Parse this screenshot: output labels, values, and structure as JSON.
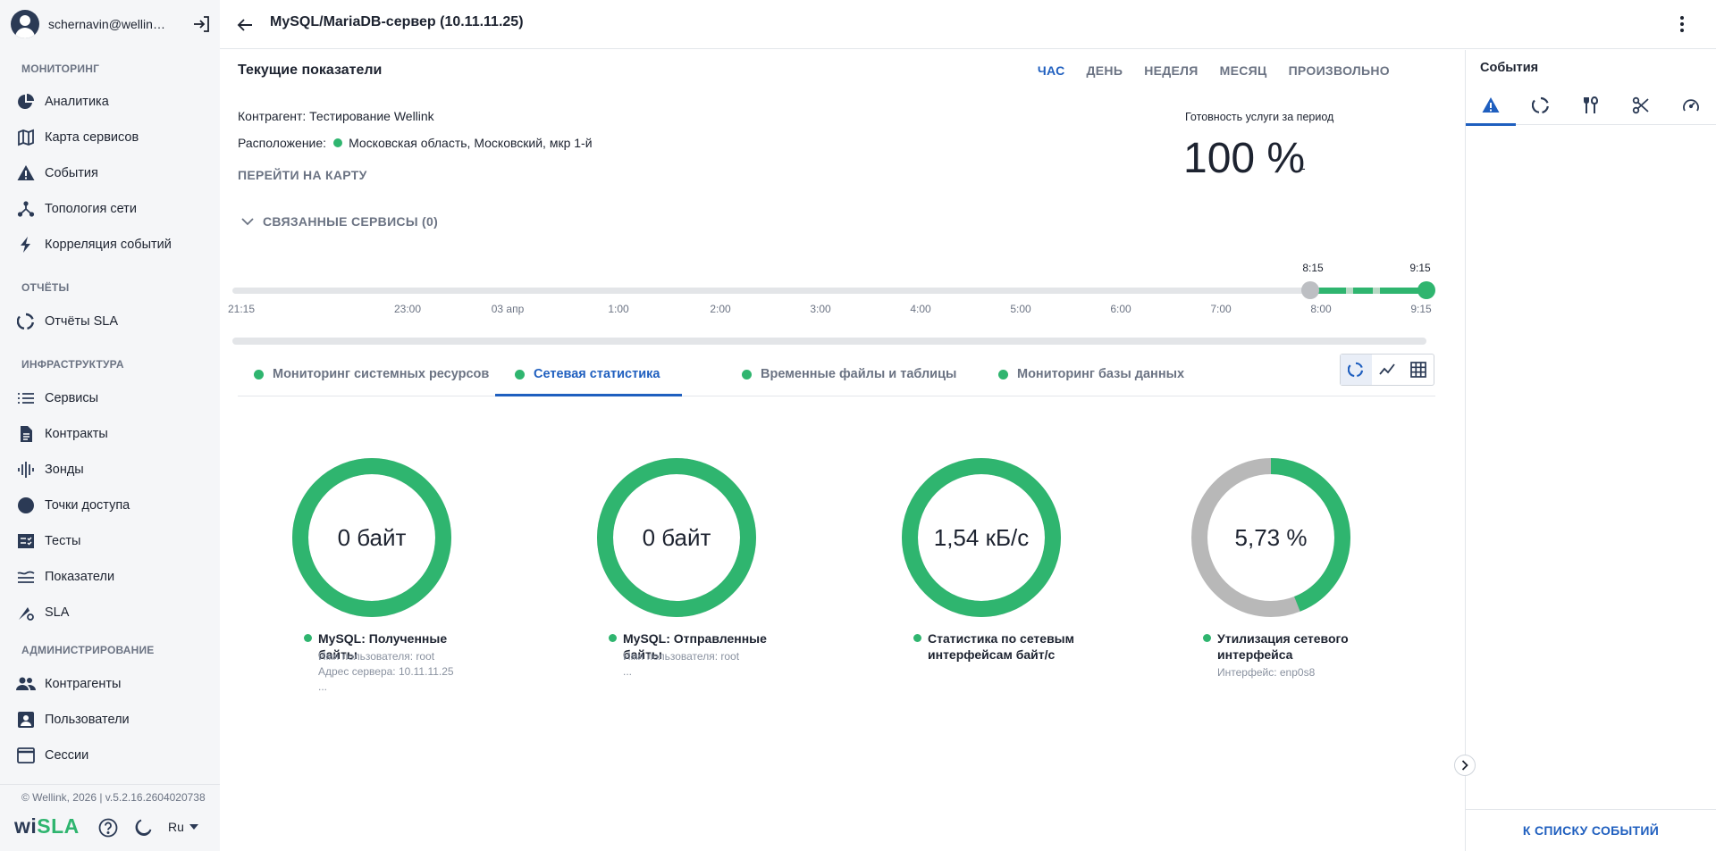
{
  "user": {
    "name": "schernavin@wellink.ru"
  },
  "sidebar": {
    "sections": [
      {
        "title": "МОНИТОРИНГ",
        "items": [
          {
            "label": "Аналитика",
            "icon": "pie-chart-icon"
          },
          {
            "label": "Карта сервисов",
            "icon": "map-icon"
          },
          {
            "label": "События",
            "icon": "warning-icon"
          },
          {
            "label": "Топология сети",
            "icon": "topology-icon"
          },
          {
            "label": "Корреляция событий",
            "icon": "bolt-icon"
          }
        ]
      },
      {
        "title": "ОТЧЁТЫ",
        "items": [
          {
            "label": "Отчёты SLA",
            "icon": "ring-icon"
          }
        ]
      },
      {
        "title": "ИНФРАСТРУКТУРА",
        "items": [
          {
            "label": "Сервисы",
            "icon": "list-icon"
          },
          {
            "label": "Контракты",
            "icon": "document-icon"
          },
          {
            "label": "Зонды",
            "icon": "wave-icon"
          },
          {
            "label": "Точки доступа",
            "icon": "circle-icon"
          },
          {
            "label": "Тесты",
            "icon": "checklist-icon"
          },
          {
            "label": "Показатели",
            "icon": "lines-icon"
          },
          {
            "label": "SLA",
            "icon": "sla-icon"
          }
        ]
      },
      {
        "title": "АДМИНИСТРИРОВАНИЕ",
        "items": [
          {
            "label": "Контрагенты",
            "icon": "people-icon"
          },
          {
            "label": "Пользователи",
            "icon": "user-card-icon"
          },
          {
            "label": "Сессии",
            "icon": "window-icon"
          }
        ]
      }
    ],
    "copyright": "© Wellink, 2026 | v.5.2.16.2604020738",
    "brand_prefix": "wi",
    "brand_suffix": "SLA",
    "language": "Ru"
  },
  "header": {
    "title": "MySQL/MariaDB-сервер (10.11.11.25)"
  },
  "main": {
    "section_title": "Текущие показатели",
    "periods": [
      {
        "label": "ЧАС",
        "active": true
      },
      {
        "label": "ДЕНЬ",
        "active": false
      },
      {
        "label": "НЕДЕЛЯ",
        "active": false
      },
      {
        "label": "МЕСЯЦ",
        "active": false
      },
      {
        "label": "ПРОИЗВОЛЬНО",
        "active": false
      }
    ],
    "counterparty": "Контрагент: Тестирование Wellink",
    "location_label": "Расположение:",
    "location_value": "Московская область, Московский, мкр 1-й",
    "map_link": "ПЕРЕЙТИ НА КАРТУ",
    "availability_label": "Готовность услуги за период",
    "availability_value": "100 %",
    "availability_dash": "-",
    "related_services": "СВЯЗАННЫЕ СЕРВИСЫ (0)"
  },
  "timeline": {
    "ticks": [
      "21:15",
      "23:00",
      "03 апр",
      "1:00",
      "2:00",
      "3:00",
      "4:00",
      "5:00",
      "6:00",
      "7:00",
      "8:00",
      "9:15"
    ],
    "range_start": "8:15",
    "range_end": "9:15"
  },
  "tabs": [
    {
      "label": "Мониторинг системных ресурсов",
      "active": false
    },
    {
      "label": "Сетевая статистика",
      "active": true
    },
    {
      "label": "Временные файлы и таблицы",
      "active": false
    },
    {
      "label": "Мониторинг базы данных",
      "active": false
    }
  ],
  "gauges": [
    {
      "value": "0 байт",
      "fill": 1.0,
      "title": "MySQL: Полученные байты",
      "sub": [
        "Имя пользователя: root",
        "Адрес сервера: 10.11.11.25",
        "..."
      ]
    },
    {
      "value": "0 байт",
      "fill": 1.0,
      "title": "MySQL: Отправленные байты",
      "sub": [
        "Имя пользователя: root",
        "..."
      ]
    },
    {
      "value": "1,54 кБ/с",
      "fill": 1.0,
      "title": "Статистика по сетевым интерфейсам байт/с",
      "sub": []
    },
    {
      "value": "5,73 %",
      "fill": 0.44,
      "title": "Утилизация сетевого интерфейса",
      "sub": [
        "Интерфейс: enp0s8"
      ]
    }
  ],
  "colors": {
    "accent": "#1f5fbf",
    "ok": "#2fb56f",
    "track": "#b8b8b8"
  },
  "events_panel": {
    "title": "События",
    "tabs": [
      "warning-icon",
      "ring-icon",
      "tools-icon",
      "scissors-icon",
      "gauge-icon"
    ],
    "footer": "К СПИСКУ СОБЫТИЙ"
  }
}
